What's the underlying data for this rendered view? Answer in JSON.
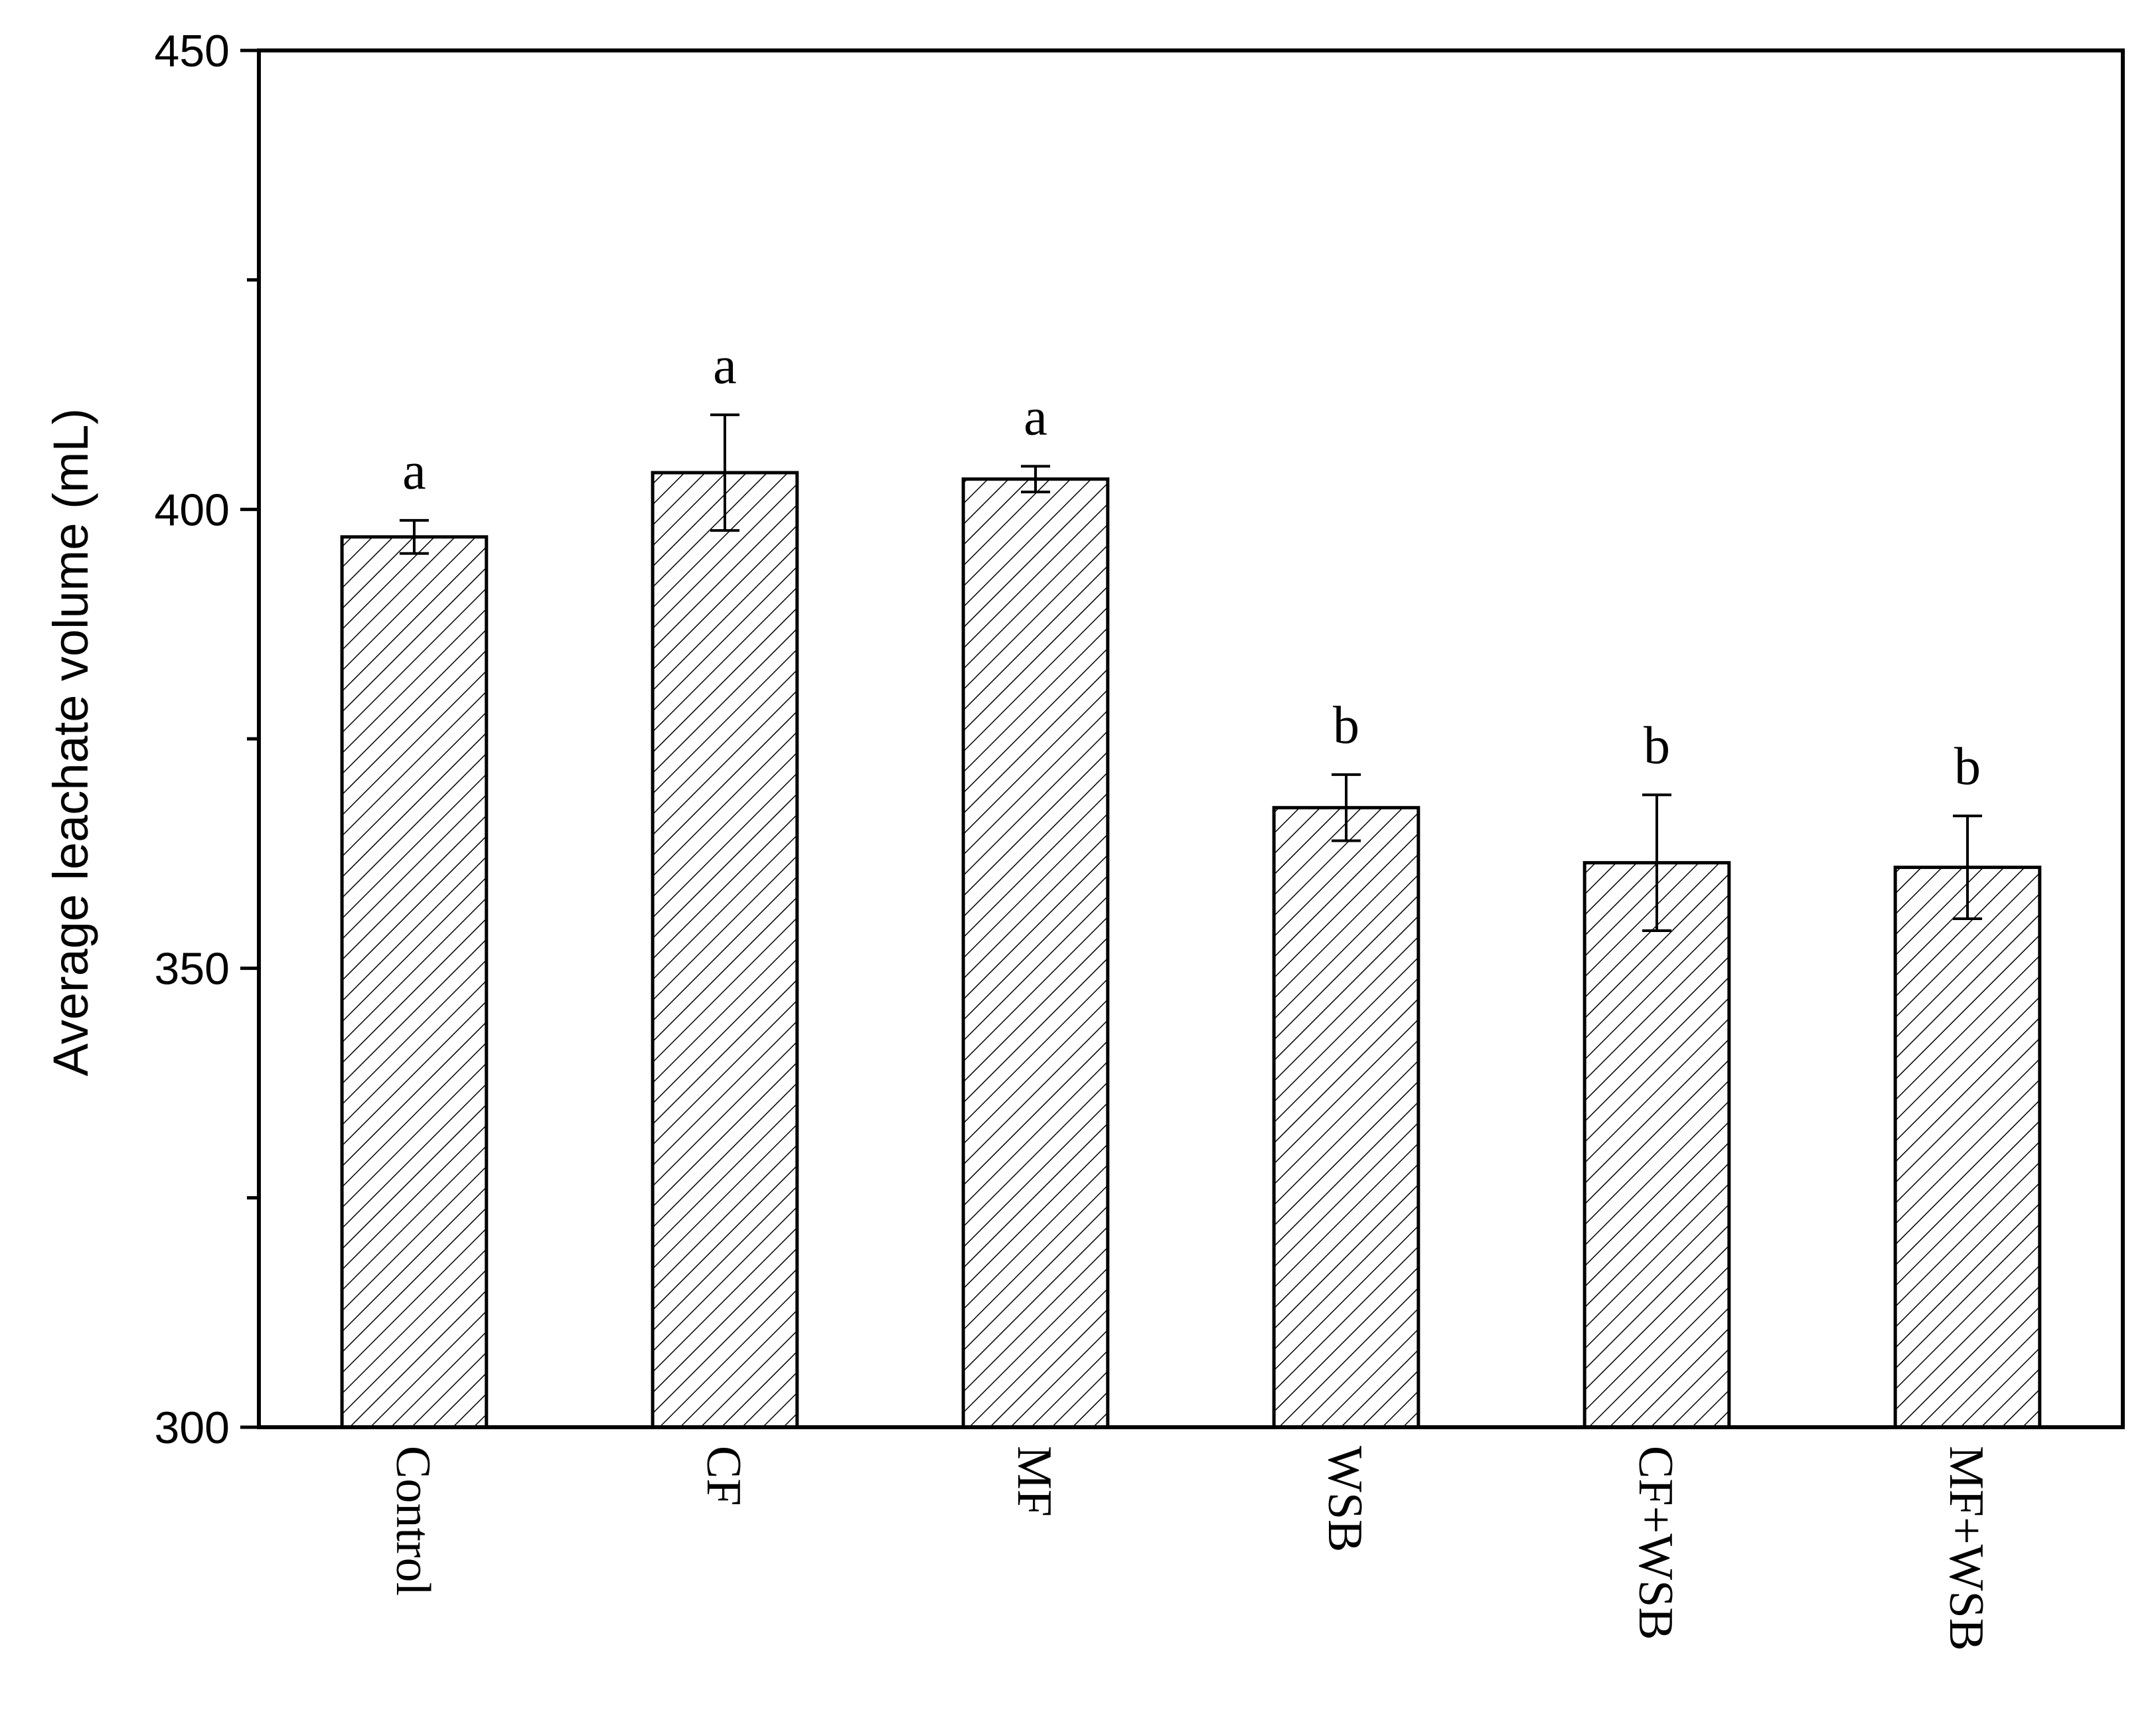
{
  "chart_data": {
    "type": "bar",
    "categories": [
      "Control",
      "CF",
      "MF",
      "WSB",
      "CF+WSB",
      "MF+WSB"
    ],
    "values": [
      397,
      404,
      403.3,
      367.5,
      361.5,
      361
    ],
    "errors": [
      1.8,
      6.3,
      1.4,
      3.6,
      7.4,
      5.6
    ],
    "significance": [
      "a",
      "a",
      "a",
      "b",
      "b",
      "b"
    ],
    "ylabel": "Average leachate volume (mL)",
    "xlabel": "",
    "title": "",
    "ylim": [
      300,
      450
    ],
    "yticks": [
      300,
      350,
      400,
      450
    ],
    "yticks_minor": [
      325,
      375,
      425
    ],
    "bar_fill": "hatched",
    "bar_color": "#ffffff",
    "line_color": "#000000",
    "grid": false,
    "legend": "none"
  }
}
